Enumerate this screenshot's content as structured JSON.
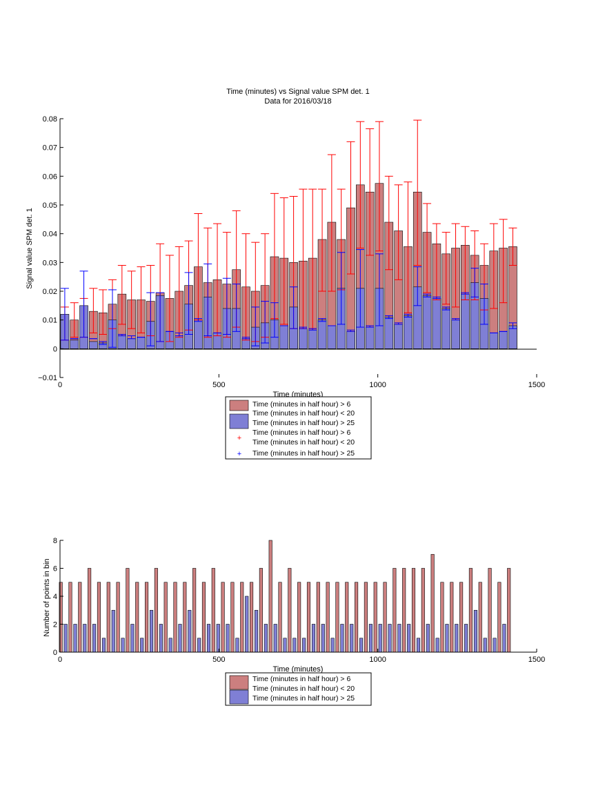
{
  "chart_data": [
    {
      "type": "bar",
      "title": "Time (minutes) vs Signal value SPM det. 1",
      "subtitle": "Data for 2016/03/18",
      "xlabel": "Time (minutes)",
      "ylabel": "Signal value SPM det. 1",
      "xlim": [
        0,
        1500
      ],
      "ylim": [
        -0.01,
        0.08
      ],
      "xticks": [
        "0",
        "500",
        "1000",
        "1500"
      ],
      "yticks": [
        "−0.01",
        "0",
        "0.01",
        "0.02",
        "0.03",
        "0.04",
        "0.05",
        "0.06",
        "0.07",
        "0.08"
      ],
      "grid": false,
      "legend_position": "below",
      "x": [
        15,
        45,
        75,
        105,
        135,
        165,
        195,
        225,
        255,
        285,
        315,
        345,
        375,
        405,
        435,
        465,
        495,
        525,
        555,
        585,
        615,
        645,
        675,
        705,
        735,
        765,
        795,
        825,
        855,
        885,
        915,
        945,
        975,
        1005,
        1035,
        1065,
        1095,
        1125,
        1155,
        1185,
        1215,
        1245,
        1275,
        1305,
        1335,
        1365,
        1395,
        1425
      ],
      "series": [
        {
          "name": "Time (minutes in half hour) > 6\nTime (minutes in half hour) < 20",
          "color": "#cc7f7f",
          "err_color": "#ff0000",
          "values": [
            0.003,
            0.01,
            0.004,
            0.013,
            0.0125,
            0.0155,
            0.019,
            0.017,
            0.017,
            0.0165,
            0.0195,
            0.0175,
            0.02,
            0.022,
            0.0285,
            0.023,
            0.024,
            0.0225,
            0.0275,
            0.0215,
            0.02,
            0.022,
            0.032,
            0.0315,
            0.03,
            0.0305,
            0.0315,
            0.038,
            0.044,
            0.038,
            0.049,
            0.057,
            0.0545,
            0.0575,
            0.044,
            0.041,
            0.0355,
            0.0545,
            0.0405,
            0.0365,
            0.033,
            0.035,
            0.036,
            0.0325,
            0.029,
            0.034,
            0.035,
            0.0355
          ],
          "err_low": [
            0.003,
            0.004,
            0.004,
            0.0055,
            0.005,
            0.007,
            0.0085,
            0.007,
            0.0055,
            0.0045,
            0.0025,
            0.0025,
            0.004,
            0.0065,
            0.01,
            0.004,
            0.0045,
            0.004,
            0.0075,
            0.003,
            0.0025,
            0.004,
            0.0105,
            0.0085,
            0.007,
            0.007,
            0.007,
            0.02,
            0.02,
            0.0205,
            0.026,
            0.035,
            0.0325,
            0.034,
            0.0275,
            0.024,
            0.0125,
            0.029,
            0.0195,
            0.017,
            0.0155,
            0.0145,
            0.017,
            0.017,
            0.0135,
            0.014,
            0.016,
            0.029
          ],
          "err_high": [
            0.0145,
            0.016,
            0.0175,
            0.021,
            0.0205,
            0.024,
            0.029,
            0.027,
            0.0285,
            0.029,
            0.0365,
            0.0325,
            0.0355,
            0.0375,
            0.047,
            0.042,
            0.0435,
            0.0405,
            0.048,
            0.04,
            0.037,
            0.04,
            0.054,
            0.0525,
            0.053,
            0.0555,
            0.0555,
            0.0555,
            0.0675,
            0.0555,
            0.072,
            0.079,
            0.0765,
            0.079,
            0.06,
            0.057,
            0.058,
            0.0795,
            0.0505,
            0.0435,
            0.0405,
            0.0435,
            0.0425,
            0.041,
            0.0365,
            0.0435,
            0.045,
            0.042
          ]
        },
        {
          "name": "Time (minutes in half hour) > 25",
          "color": "#7f7fd5",
          "err_color": "#0000ff",
          "values": [
            0.012,
            0.003,
            0.015,
            0.0025,
            0.002,
            0.01,
            0.0045,
            0.0035,
            0.004,
            0.0095,
            0.0185,
            0.006,
            0.0045,
            0.0155,
            0.01,
            0.018,
            0.0055,
            0.014,
            0.014,
            0.0035,
            0.0075,
            0.009,
            0.01,
            0.008,
            0.0145,
            0.007,
            0.0065,
            0.01,
            0.008,
            0.021,
            0.006,
            0.021,
            0.0075,
            0.021,
            0.011,
            0.0085,
            0.0115,
            0.0215,
            0.0185,
            0.0175,
            0.014,
            0.01,
            0.019,
            0.023,
            0.0175,
            0.0055,
            0.006,
            0.008
          ],
          "err_low": [
            0.003,
            0.0035,
            0.004,
            0.0035,
            0.0015,
            0.0005,
            0.0045,
            0.0035,
            0.004,
            0.001,
            0.0025,
            0.006,
            0.0045,
            0.005,
            0.0095,
            0.0045,
            0.0055,
            0.005,
            0.006,
            0.0035,
            0.001,
            0.002,
            0.004,
            0.008,
            0.007,
            0.0075,
            0.0065,
            0.0095,
            0.008,
            0.0085,
            0.006,
            0.0075,
            0.0075,
            0.008,
            0.0105,
            0.0085,
            0.011,
            0.015,
            0.018,
            0.0175,
            0.0135,
            0.01,
            0.019,
            0.018,
            0.0085,
            0.0055,
            0.006,
            0.007
          ],
          "err_high": [
            0.021,
            0.0035,
            0.027,
            0.0035,
            0.0025,
            0.0205,
            0.005,
            0.0045,
            0.004,
            0.0195,
            0.0195,
            0.006,
            0.0055,
            0.0265,
            0.0105,
            0.0295,
            0.0055,
            0.0245,
            0.0225,
            0.004,
            0.0145,
            0.0165,
            0.016,
            0.008,
            0.0215,
            0.007,
            0.007,
            0.0105,
            0.008,
            0.0335,
            0.0065,
            0.0345,
            0.008,
            0.033,
            0.0115,
            0.009,
            0.012,
            0.0285,
            0.019,
            0.018,
            0.0145,
            0.0105,
            0.0195,
            0.028,
            0.0225,
            0.0055,
            0.006,
            0.009
          ]
        }
      ]
    },
    {
      "type": "bar",
      "title": "",
      "xlabel": "Time (minutes)",
      "ylabel": "Number of points in bin",
      "xlim": [
        0,
        1500
      ],
      "ylim": [
        0,
        8
      ],
      "xticks": [
        "0",
        "500",
        "1000",
        "1500"
      ],
      "yticks": [
        "0",
        "2",
        "4",
        "6",
        "8"
      ],
      "grid": false,
      "legend_position": "below",
      "x": [
        15,
        45,
        75,
        105,
        135,
        165,
        195,
        225,
        255,
        285,
        315,
        345,
        375,
        405,
        435,
        465,
        495,
        525,
        555,
        585,
        615,
        645,
        675,
        705,
        735,
        765,
        795,
        825,
        855,
        885,
        915,
        945,
        975,
        1005,
        1035,
        1065,
        1095,
        1125,
        1155,
        1185,
        1215,
        1245,
        1275,
        1305,
        1335,
        1365,
        1395,
        1425
      ],
      "series": [
        {
          "name": "Time (minutes in half hour) > 6\nTime (minutes in half hour) < 20",
          "color": "#cc7f7f",
          "values": [
            5,
            5,
            5,
            6,
            5,
            5,
            5,
            6,
            5,
            5,
            6,
            5,
            5,
            5,
            6,
            5,
            6,
            5,
            5,
            5,
            5,
            6,
            8,
            5,
            6,
            5,
            5,
            5,
            5,
            5,
            5,
            5,
            5,
            5,
            5,
            6,
            6,
            6,
            6,
            7,
            5,
            5,
            5,
            6,
            5,
            6,
            5,
            6
          ]
        },
        {
          "name": "Time (minutes in half hour) > 25",
          "color": "#7f7fd5",
          "values": [
            2,
            2,
            2,
            2,
            1,
            3,
            1,
            2,
            1,
            3,
            2,
            1,
            2,
            3,
            1,
            2,
            2,
            2,
            1,
            4,
            3,
            2,
            2,
            1,
            1,
            1,
            2,
            2,
            1,
            2,
            2,
            1,
            2,
            2,
            2,
            2,
            2,
            1,
            2,
            1,
            2,
            2,
            2,
            3,
            1,
            1,
            2,
            0
          ]
        }
      ]
    }
  ]
}
